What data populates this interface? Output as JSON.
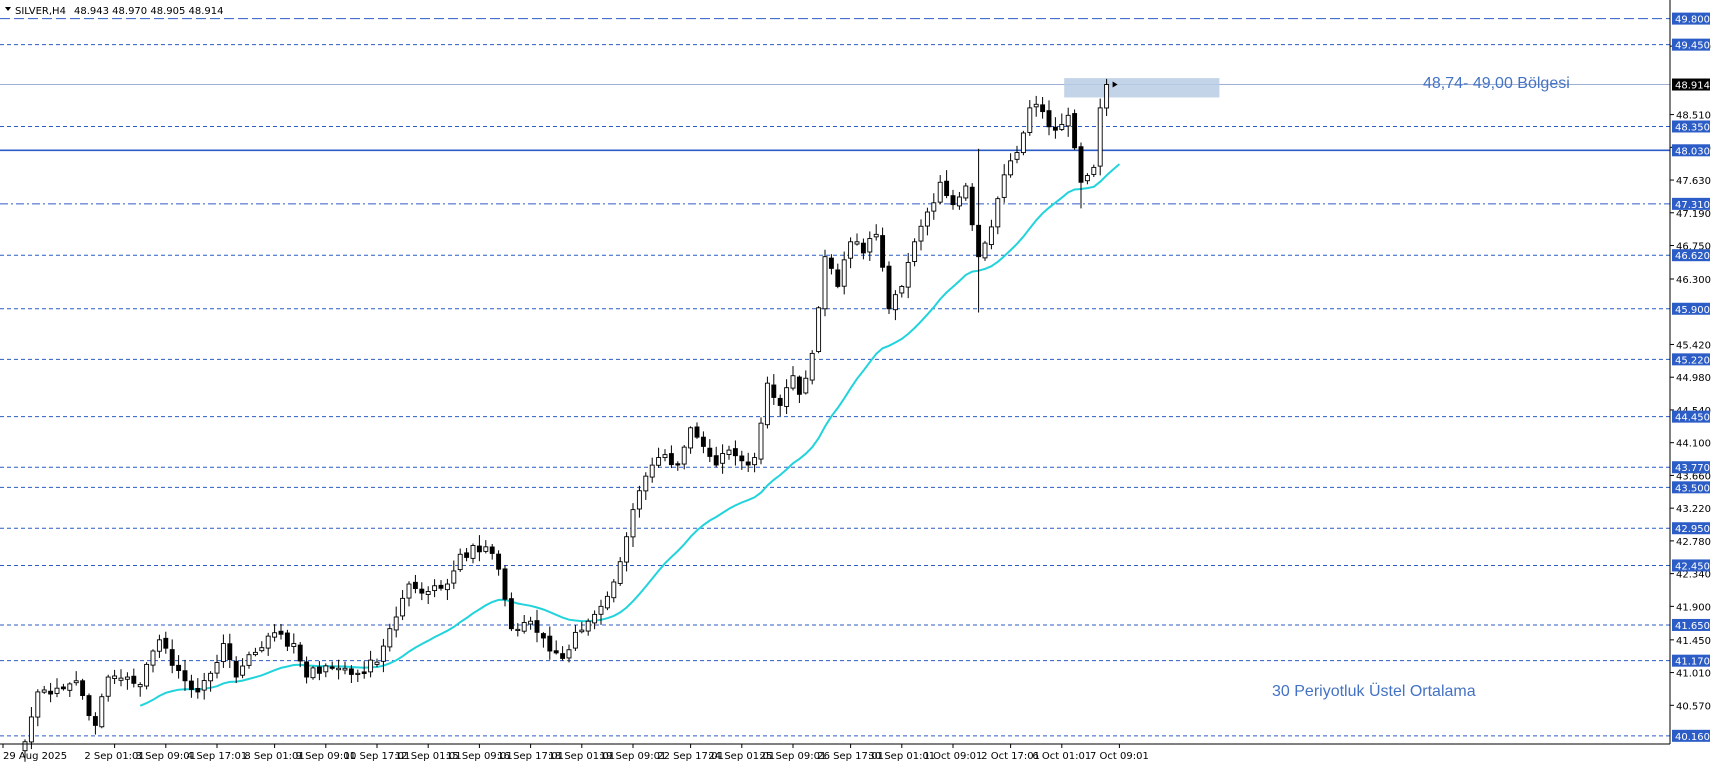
{
  "header": {
    "symbol": "SILVER,H4",
    "ohlc": "48.943 48.970 48.905 48.914"
  },
  "colors": {
    "background": "#ffffff",
    "candle_up_fill": "#ffffff",
    "candle_down_fill": "#000000",
    "candle_outline": "#000000",
    "ema": "#22d3dc",
    "level_line": "#2c5cc5",
    "level_badge": "#2c5cc5",
    "current_price_badge": "#000000",
    "zone_fill": "#b8cce4",
    "annotation": "#4472c4"
  },
  "chart_data": {
    "type": "candlestick",
    "symbol": "SILVER",
    "timeframe": "H4",
    "ylim": [
      40.05,
      50.05
    ],
    "y_tick_labels": [
      "49.430",
      "48.510",
      "48.070",
      "47.630",
      "47.190",
      "46.750",
      "46.300",
      "45.420",
      "44.980",
      "44.540",
      "44.100",
      "43.660",
      "43.220",
      "42.780",
      "42.340",
      "41.900",
      "41.450",
      "41.010",
      "40.570"
    ],
    "x_tick_labels": [
      {
        "label": "29 Aug 2025",
        "index": 0
      },
      {
        "label": "2 Sep 01:01",
        "index": 14
      },
      {
        "label": "3 Sep 09:01",
        "index": 22
      },
      {
        "label": "4 Sep 17:01",
        "index": 30
      },
      {
        "label": "8 Sep 01:01",
        "index": 39
      },
      {
        "label": "9 Sep 09:01",
        "index": 47
      },
      {
        "label": "10 Sep 17:01",
        "index": 55
      },
      {
        "label": "12 Sep 01:01",
        "index": 63
      },
      {
        "label": "15 Sep 09:01",
        "index": 71
      },
      {
        "label": "16 Sep 17:01",
        "index": 79
      },
      {
        "label": "18 Sep 01:01",
        "index": 87
      },
      {
        "label": "19 Sep 09:01",
        "index": 95
      },
      {
        "label": "22 Sep 17:01",
        "index": 104
      },
      {
        "label": "24 Sep 01:01",
        "index": 112
      },
      {
        "label": "25 Sep 09:01",
        "index": 120
      },
      {
        "label": "26 Sep 17:01",
        "index": 129
      },
      {
        "label": "30 Sep 01:01",
        "index": 137
      },
      {
        "label": "1 Oct 09:01",
        "index": 145
      },
      {
        "label": "2 Oct 17:01",
        "index": 154
      },
      {
        "label": "6 Oct 01:01",
        "index": 162
      },
      {
        "label": "7 Oct 09:01",
        "index": 171
      }
    ],
    "levels": [
      {
        "price": "49.800",
        "style": "longdash"
      },
      {
        "price": "49.450",
        "style": "dash"
      },
      {
        "price": "48.350",
        "style": "dash"
      },
      {
        "price": "48.030",
        "style": "solid"
      },
      {
        "price": "47.310",
        "style": "dashdot"
      },
      {
        "price": "46.620",
        "style": "dash"
      },
      {
        "price": "45.900",
        "style": "dash"
      },
      {
        "price": "45.220",
        "style": "dash"
      },
      {
        "price": "44.450",
        "style": "dash"
      },
      {
        "price": "43.770",
        "style": "dash"
      },
      {
        "price": "43.500",
        "style": "dash"
      },
      {
        "price": "42.950",
        "style": "dash"
      },
      {
        "price": "42.450",
        "style": "dash"
      },
      {
        "price": "41.650",
        "style": "dash"
      },
      {
        "price": "41.170",
        "style": "dash"
      },
      {
        "price": "40.160",
        "style": "dash"
      }
    ],
    "current_price": "48.914",
    "zone": {
      "low": 48.74,
      "high": 49.0,
      "start_index": 163,
      "end_index": 186
    },
    "annotations": {
      "zone_label": "48,74- 49,00 Bölgesi",
      "ema_label": "30 Periyotluk Üstel Ortalama"
    },
    "ema_period": 30,
    "ema_initial": 40.05,
    "anchors": [
      [
        0,
        40.08,
        1
      ],
      [
        2,
        40.75,
        1
      ],
      [
        5,
        40.8,
        0
      ],
      [
        8,
        40.9,
        0
      ],
      [
        11,
        40.3,
        0
      ],
      [
        13,
        40.95,
        1
      ],
      [
        16,
        40.95,
        1
      ],
      [
        18,
        40.85,
        0
      ],
      [
        20,
        41.3,
        1
      ],
      [
        21,
        41.45,
        1
      ],
      [
        25,
        40.9,
        0
      ],
      [
        27,
        40.75,
        0
      ],
      [
        29,
        41.0,
        1
      ],
      [
        31,
        41.4,
        1
      ],
      [
        33,
        40.95,
        0
      ],
      [
        35,
        41.25,
        1
      ],
      [
        38,
        41.5,
        1
      ],
      [
        42,
        41.4,
        0
      ],
      [
        44,
        40.95,
        0
      ],
      [
        47,
        41.1,
        1
      ],
      [
        52,
        41.0,
        0
      ],
      [
        55,
        41.15,
        1
      ],
      [
        57,
        41.6,
        1
      ],
      [
        60,
        42.2,
        1
      ],
      [
        63,
        42.1,
        0
      ],
      [
        66,
        42.2,
        1
      ],
      [
        68,
        42.6,
        1
      ],
      [
        72,
        42.7,
        0
      ],
      [
        74,
        42.4,
        0
      ],
      [
        76,
        41.6,
        0
      ],
      [
        79,
        41.7,
        1
      ],
      [
        82,
        41.3,
        0
      ],
      [
        84,
        41.2,
        0
      ],
      [
        86,
        41.55,
        1
      ],
      [
        88,
        41.7,
        1
      ],
      [
        90,
        41.9,
        1
      ],
      [
        93,
        42.5,
        1
      ],
      [
        95,
        43.2,
        1
      ],
      [
        97,
        43.65,
        1
      ],
      [
        99,
        43.9,
        1
      ],
      [
        102,
        43.8,
        0
      ],
      [
        104,
        44.3,
        1
      ],
      [
        106,
        44.05,
        0
      ],
      [
        108,
        43.8,
        0
      ],
      [
        110,
        44.0,
        1
      ],
      [
        113,
        43.8,
        0
      ],
      [
        114,
        43.9,
        1
      ],
      [
        116,
        44.9,
        1
      ],
      [
        118,
        44.6,
        0
      ],
      [
        120,
        45.0,
        1
      ],
      [
        121,
        44.75,
        0
      ],
      [
        123,
        45.3,
        1
      ],
      [
        125,
        46.6,
        1
      ],
      [
        127,
        46.2,
        0
      ],
      [
        129,
        46.8,
        1
      ],
      [
        131,
        46.65,
        0
      ],
      [
        133,
        46.9,
        1
      ],
      [
        135,
        45.9,
        0
      ],
      [
        137,
        46.2,
        1
      ],
      [
        139,
        46.8,
        1
      ],
      [
        141,
        47.2,
        1
      ],
      [
        143,
        47.6,
        1
      ],
      [
        145,
        47.3,
        0
      ],
      [
        147,
        47.55,
        1
      ],
      [
        149,
        46.6,
        0
      ],
      [
        151,
        47.0,
        1
      ],
      [
        153,
        47.7,
        1
      ],
      [
        155,
        48.0,
        1
      ],
      [
        157,
        48.6,
        1
      ],
      [
        159,
        48.55,
        0
      ],
      [
        161,
        48.3,
        0
      ],
      [
        163,
        48.5,
        1
      ],
      [
        165,
        47.6,
        0
      ],
      [
        167,
        47.8,
        1
      ],
      [
        168,
        48.6,
        1
      ],
      [
        169,
        48.914,
        1
      ]
    ]
  }
}
